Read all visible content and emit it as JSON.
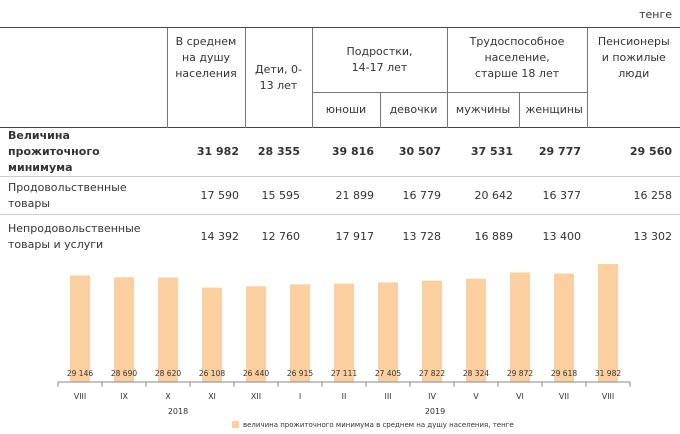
{
  "table": {
    "unit": "тенге",
    "headers": {
      "average": "В среднем на душу населения",
      "children": "Дети, 0-13 лет",
      "teens": "Подростки, 14-17 лет",
      "teens_sub": [
        "юноши",
        "девочки"
      ],
      "working": "Трудоспособное население, старше 18 лет",
      "working_sub": [
        "мужчины",
        "женщины"
      ],
      "pensioners": "Пенсионеры и пожилые люди"
    },
    "rows": [
      {
        "label": "Величина прожиточного минимума",
        "values": [
          "31 982",
          "28 355",
          "39 816",
          "30 507",
          "37 531",
          "29 777",
          "29 560"
        ]
      },
      {
        "label": "Продовольственные товары",
        "values": [
          "17 590",
          "15 595",
          "21 899",
          "16 779",
          "20 642",
          "16 377",
          "16 258"
        ]
      },
      {
        "label": "Непродовольственные товары и услуги",
        "values": [
          "14 392",
          "12 760",
          "17 917",
          "13 728",
          "16 889",
          "13 400",
          "13 302"
        ]
      }
    ]
  },
  "chart_data": {
    "type": "bar",
    "categories": [
      "VIII",
      "IX",
      "X",
      "XI",
      "XII",
      "I",
      "II",
      "III",
      "IV",
      "V",
      "VI",
      "VII",
      "VIII"
    ],
    "years": [
      "2018",
      "2019"
    ],
    "series": [
      {
        "name": "величина прожиточного минимума в среднем на душу населения, тенге",
        "color": "#fbcfa0",
        "values": [
          29146,
          28690,
          28620,
          26108,
          26440,
          26915,
          27111,
          27405,
          27822,
          28324,
          29872,
          29618,
          31982
        ],
        "value_labels": [
          "29 146",
          "28 690",
          "28 620",
          "26 108",
          "26 440",
          "26 915",
          "27 111",
          "27 405",
          "27 822",
          "28 324",
          "29 872",
          "29 618",
          "31 982"
        ]
      }
    ]
  }
}
